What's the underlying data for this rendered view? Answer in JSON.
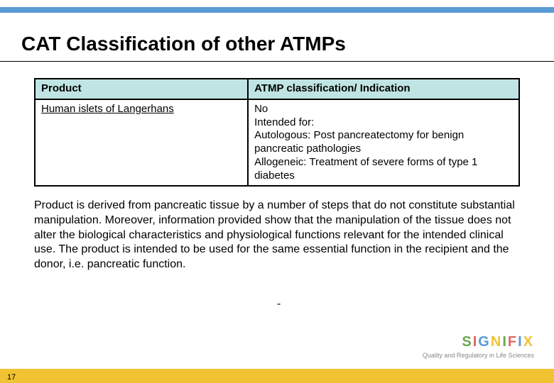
{
  "colors": {
    "accent_bar": "#5b9bd5",
    "header_bg": "#bfe4e3",
    "footer_bar": "#f1c232"
  },
  "title": "CAT Classification of other ATMPs",
  "table": {
    "header": {
      "c1": "Product",
      "c2": "ATMP classification/ Indication"
    },
    "row": {
      "c1": "Human islets of Langerhans",
      "c2": "No\nIntended for:\nAutologous: Post pancreatectomy for benign pancreatic pathologies\nAllogeneic: Treatment of severe forms of type 1 diabetes"
    }
  },
  "body": "Product is derived from pancreatic tissue by a number of steps that do not constitute substantial manipulation. Moreover, information provided show that the manipulation of the tissue does not alter the biological characteristics and physiological functions relevant for the intended clinical use. The product is intended to be used for the same essential function in the recipient and the donor, i.e. pancreatic function.",
  "dash": "-",
  "logo": {
    "name": "SIGNIFIX",
    "tagline": "Quality and Regulatory in Life Sciences"
  },
  "page": "17"
}
